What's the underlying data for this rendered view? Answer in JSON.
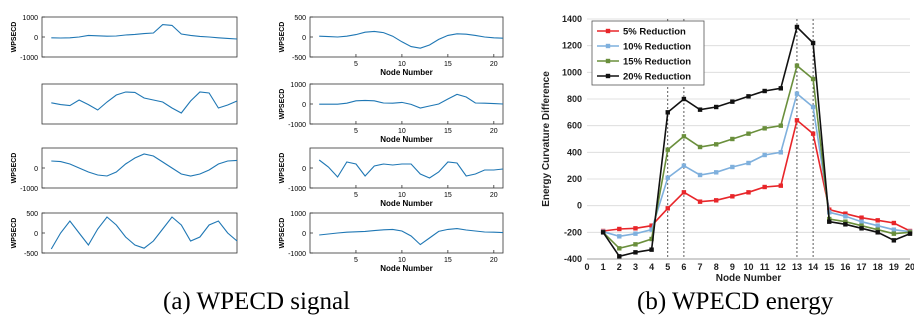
{
  "captions": {
    "a": "(a)  WPECD signal",
    "b": "(b) WPECD energy"
  },
  "chart_data": [
    {
      "panel": "a-1",
      "type": "line",
      "xlabel": "",
      "ylabel": "WPSECD",
      "xlim": [
        0,
        21
      ],
      "ylim": [
        -1000,
        1000
      ],
      "yticks": [
        1000,
        0,
        -1000
      ],
      "xticks": [],
      "x": [
        1,
        2,
        3,
        4,
        5,
        6,
        7,
        8,
        9,
        10,
        11,
        12,
        13,
        14,
        15,
        16,
        17,
        18,
        19,
        20,
        21
      ],
      "series": [
        {
          "color": "#1f77b4",
          "values": [
            -40,
            -50,
            -40,
            0,
            80,
            60,
            40,
            50,
            100,
            130,
            170,
            200,
            620,
            580,
            150,
            80,
            30,
            0,
            -40,
            -70,
            -100
          ]
        }
      ]
    },
    {
      "panel": "a-2",
      "type": "line",
      "xlabel": "Node Number",
      "ylabel": "WPSECD",
      "xlim": [
        0,
        21
      ],
      "ylim": [
        -500,
        500
      ],
      "yticks": [
        500,
        0,
        -500
      ],
      "xticks": [
        5,
        10,
        15,
        20
      ],
      "x": [
        1,
        2,
        3,
        4,
        5,
        6,
        7,
        8,
        9,
        10,
        11,
        12,
        13,
        14,
        15,
        16,
        17,
        18,
        19,
        20,
        21
      ],
      "series": [
        {
          "color": "#1f77b4",
          "values": [
            20,
            10,
            0,
            20,
            60,
            120,
            140,
            110,
            20,
            -120,
            -240,
            -280,
            -200,
            -60,
            40,
            80,
            70,
            40,
            0,
            -20,
            -30
          ]
        }
      ]
    },
    {
      "panel": "a-3",
      "type": "line",
      "xlabel": "",
      "ylabel": "",
      "xlim": [
        0,
        21
      ],
      "ylim": [
        -1000,
        1000
      ],
      "yticks": [],
      "xticks": [],
      "x": [
        1,
        2,
        3,
        4,
        5,
        6,
        7,
        8,
        9,
        10,
        11,
        12,
        13,
        14,
        15,
        16,
        17,
        18,
        19,
        20,
        21
      ],
      "series": [
        {
          "color": "#1f77b4",
          "values": [
            60,
            -30,
            -80,
            200,
            -30,
            -300,
            100,
            450,
            600,
            580,
            300,
            200,
            100,
            -200,
            -450,
            150,
            600,
            550,
            -200,
            -50,
            150
          ]
        }
      ]
    },
    {
      "panel": "a-4",
      "type": "line",
      "xlabel": "Node Number",
      "ylabel": "WPSECD",
      "xlim": [
        0,
        21
      ],
      "ylim": [
        -1000,
        1000
      ],
      "yticks": [
        1000,
        0,
        -1000
      ],
      "xticks": [
        5,
        10,
        15,
        20
      ],
      "x": [
        1,
        2,
        3,
        4,
        5,
        6,
        7,
        8,
        9,
        10,
        11,
        12,
        13,
        14,
        15,
        16,
        17,
        18,
        19,
        20,
        21
      ],
      "series": [
        {
          "color": "#1f77b4",
          "values": [
            -10,
            -10,
            -10,
            40,
            160,
            180,
            160,
            50,
            40,
            80,
            -20,
            -200,
            -100,
            0,
            250,
            480,
            350,
            50,
            40,
            20,
            0
          ]
        }
      ]
    },
    {
      "panel": "a-5",
      "type": "line",
      "xlabel": "",
      "ylabel": "WPSECD",
      "xlim": [
        0,
        21
      ],
      "ylim": [
        -1000,
        1000
      ],
      "yticks": [
        0,
        -1000
      ],
      "xticks": [],
      "x": [
        1,
        2,
        3,
        4,
        5,
        6,
        7,
        8,
        9,
        10,
        11,
        12,
        13,
        14,
        15,
        16,
        17,
        18,
        19,
        20,
        21
      ],
      "series": [
        {
          "color": "#1f77b4",
          "values": [
            350,
            320,
            200,
            0,
            -200,
            -350,
            -400,
            -200,
            200,
            500,
            700,
            600,
            300,
            0,
            -300,
            -400,
            -300,
            -100,
            200,
            350,
            380
          ]
        }
      ]
    },
    {
      "panel": "a-6",
      "type": "line",
      "xlabel": "Node Number",
      "ylabel": "WPSECD",
      "xlim": [
        0,
        21
      ],
      "ylim": [
        -1000,
        1000
      ],
      "yticks": [
        0,
        -1000
      ],
      "xticks": [
        5,
        10,
        15,
        20
      ],
      "x": [
        1,
        2,
        3,
        4,
        5,
        6,
        7,
        8,
        9,
        10,
        11,
        12,
        13,
        14,
        15,
        16,
        17,
        18,
        19,
        20,
        21
      ],
      "series": [
        {
          "color": "#1f77b4",
          "values": [
            400,
            50,
            -450,
            300,
            200,
            -400,
            100,
            200,
            150,
            200,
            200,
            -300,
            -500,
            -200,
            300,
            250,
            -400,
            -300,
            -100,
            -100,
            -50
          ]
        }
      ]
    },
    {
      "panel": "a-7",
      "type": "line",
      "xlabel": "",
      "ylabel": "WPSECD",
      "xlim": [
        0,
        21
      ],
      "ylim": [
        -500,
        500
      ],
      "yticks": [
        500,
        0,
        -500
      ],
      "xticks": [],
      "x": [
        1,
        2,
        3,
        4,
        5,
        6,
        7,
        8,
        9,
        10,
        11,
        12,
        13,
        14,
        15,
        16,
        17,
        18,
        19,
        20,
        21
      ],
      "series": [
        {
          "color": "#1f77b4",
          "values": [
            -400,
            0,
            300,
            0,
            -300,
            100,
            400,
            200,
            -100,
            -300,
            -380,
            -200,
            100,
            400,
            200,
            -200,
            -100,
            200,
            300,
            0,
            -200
          ]
        }
      ]
    },
    {
      "panel": "a-8",
      "type": "line",
      "xlabel": "Node Number",
      "ylabel": "WPSECD",
      "xlim": [
        0,
        21
      ],
      "ylim": [
        -1000,
        1000
      ],
      "yticks": [
        1000,
        0,
        -1000
      ],
      "xticks": [
        5,
        10,
        15,
        20
      ],
      "x": [
        1,
        2,
        3,
        4,
        5,
        6,
        7,
        8,
        9,
        10,
        11,
        12,
        13,
        14,
        15,
        16,
        17,
        18,
        19,
        20,
        21
      ],
      "series": [
        {
          "color": "#1f77b4",
          "values": [
            -100,
            -50,
            0,
            40,
            60,
            80,
            120,
            160,
            180,
            100,
            -150,
            -580,
            -250,
            80,
            180,
            220,
            150,
            100,
            50,
            40,
            20
          ]
        }
      ]
    },
    {
      "panel": "b",
      "type": "line",
      "xlabel": "Node Number",
      "ylabel": "Energy Curvature Difference",
      "xlim": [
        0,
        20
      ],
      "ylim": [
        -400,
        1400
      ],
      "xticks": [
        0,
        1,
        2,
        3,
        4,
        5,
        6,
        7,
        8,
        9,
        10,
        11,
        12,
        13,
        14,
        15,
        16,
        17,
        18,
        19,
        20
      ],
      "yticks": [
        -400,
        -200,
        0,
        200,
        400,
        600,
        800,
        1000,
        1200,
        1400
      ],
      "legend_position": "top-left",
      "reference_lines_x": [
        5,
        6,
        13,
        14
      ],
      "x": [
        1,
        2,
        3,
        4,
        5,
        6,
        7,
        8,
        9,
        10,
        11,
        12,
        13,
        14,
        15,
        16,
        17,
        18,
        19,
        20
      ],
      "series": [
        {
          "name": "5% Reduction",
          "color": "#e8262a",
          "values": [
            -190,
            -175,
            -170,
            -150,
            -20,
            100,
            30,
            40,
            70,
            100,
            140,
            150,
            640,
            540,
            -30,
            -60,
            -90,
            -110,
            -130,
            -190
          ]
        },
        {
          "name": "10% Reduction",
          "color": "#7fb0dd",
          "values": [
            -195,
            -230,
            -210,
            -180,
            210,
            300,
            230,
            250,
            290,
            320,
            380,
            400,
            840,
            740,
            -50,
            -80,
            -120,
            -150,
            -180,
            -195
          ]
        },
        {
          "name": "15% Reduction",
          "color": "#6a8f3c",
          "values": [
            -200,
            -320,
            -290,
            -250,
            420,
            520,
            440,
            460,
            500,
            540,
            580,
            600,
            1050,
            950,
            -100,
            -120,
            -150,
            -180,
            -210,
            -200
          ]
        },
        {
          "name": "20% Reduction",
          "color": "#111111",
          "values": [
            -200,
            -380,
            -350,
            -330,
            700,
            800,
            720,
            740,
            780,
            820,
            860,
            880,
            1340,
            1220,
            -120,
            -140,
            -170,
            -200,
            -260,
            -210
          ]
        }
      ]
    }
  ]
}
